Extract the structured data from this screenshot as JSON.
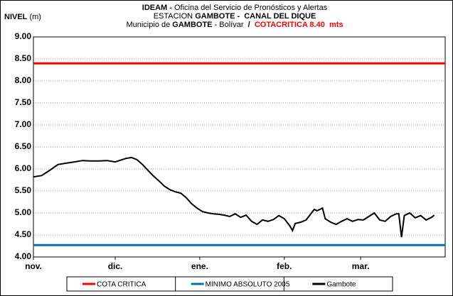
{
  "chart_data": {
    "type": "line",
    "title_lines": [
      [
        {
          "text": "IDEAM - ",
          "bold": true
        },
        {
          "text": "Oficina del Servicio de Pronósticos y Alertas"
        }
      ],
      [
        {
          "text": "ESTACION "
        },
        {
          "text": "GAMBOTE -  CANAL DEL DIQUE",
          "bold": true
        }
      ],
      [
        {
          "text": "Municipio de "
        },
        {
          "text": "GAMBOTE",
          "bold": true
        },
        {
          "text": " - Bolívar  "
        },
        {
          "text": "/  ",
          "bold": true
        },
        {
          "text": "COTACRITICA 8.40  mts",
          "bold": true,
          "color": "#ff0000"
        }
      ]
    ],
    "ylabel": [
      {
        "text": "NIVEL",
        "bold": true
      },
      {
        "text": " (m)"
      }
    ],
    "xlim": [
      0,
      151
    ],
    "xticks": [
      {
        "value": 0,
        "label": "nov."
      },
      {
        "value": 30,
        "label": "dic."
      },
      {
        "value": 61,
        "label": "ene."
      },
      {
        "value": 92,
        "label": "feb."
      },
      {
        "value": 120,
        "label": "mar."
      }
    ],
    "ylim": [
      4,
      9
    ],
    "yticks": [
      {
        "value": 4,
        "label": "4.00"
      },
      {
        "value": 4.5,
        "label": "4.50"
      },
      {
        "value": 5,
        "label": "5.00"
      },
      {
        "value": 5.5,
        "label": "5.50"
      },
      {
        "value": 6,
        "label": "6.00"
      },
      {
        "value": 6.5,
        "label": "6.50"
      },
      {
        "value": 7,
        "label": "7.00"
      },
      {
        "value": 7.5,
        "label": "7.50"
      },
      {
        "value": 8,
        "label": "8.00"
      },
      {
        "value": 8.5,
        "label": "8.50"
      },
      {
        "value": 9,
        "label": "9.00"
      }
    ],
    "grid": true,
    "series": [
      {
        "name": "COTA CRITICA",
        "color": "#ff0000",
        "x": [
          0,
          151
        ],
        "values": [
          8.4,
          8.4
        ]
      },
      {
        "name": "MINIMO ABSOLUTO 2005",
        "color": "#0070c0",
        "x": [
          0,
          151
        ],
        "values": [
          4.27,
          4.27
        ]
      },
      {
        "name": "Gambote",
        "color": "#000000",
        "x": [
          0,
          3,
          6,
          9,
          12,
          15,
          18,
          21,
          24,
          27,
          30,
          34,
          36,
          38,
          40,
          42,
          44,
          46,
          48,
          50,
          52,
          54,
          56,
          58,
          60,
          62,
          64,
          66,
          68,
          70,
          72,
          74,
          76,
          78,
          80,
          82,
          84,
          86,
          88,
          90,
          92,
          94,
          95,
          96,
          98,
          100,
          102,
          103,
          104,
          106,
          107,
          109,
          111,
          113,
          115,
          117,
          119,
          121,
          123,
          125,
          127,
          129,
          131,
          133,
          134,
          135,
          136,
          138,
          140,
          142,
          144,
          146,
          147
        ],
        "values": [
          5.82,
          5.85,
          5.97,
          6.1,
          6.13,
          6.16,
          6.19,
          6.18,
          6.18,
          6.19,
          6.16,
          6.24,
          6.26,
          6.21,
          6.1,
          5.97,
          5.84,
          5.73,
          5.61,
          5.53,
          5.48,
          5.45,
          5.35,
          5.21,
          5.11,
          5.03,
          5.0,
          4.98,
          4.97,
          4.95,
          4.92,
          4.98,
          4.9,
          4.95,
          4.81,
          4.74,
          4.84,
          4.81,
          4.85,
          4.94,
          4.87,
          4.71,
          4.6,
          4.76,
          4.79,
          4.84,
          5.0,
          5.08,
          5.05,
          5.11,
          4.87,
          4.79,
          4.74,
          4.81,
          4.87,
          4.81,
          4.85,
          4.84,
          4.92,
          5.0,
          4.84,
          4.81,
          4.92,
          4.98,
          4.98,
          4.45,
          4.94,
          5.0,
          4.89,
          4.94,
          4.84,
          4.9,
          4.95
        ]
      }
    ]
  }
}
